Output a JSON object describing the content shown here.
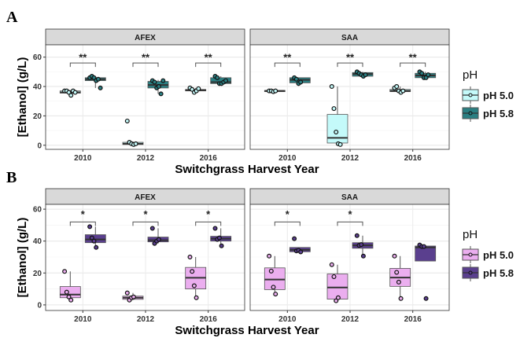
{
  "chart_data": [
    {
      "panel": "A",
      "type": "box",
      "xlabel": "Switchgrass Harvest Year",
      "ylabel": "[Ethanol] (g/L)",
      "ylim": [
        -2.8,
        68.4
      ],
      "yticks": [
        "0",
        "20",
        "40",
        "60"
      ],
      "categories": [
        "2010",
        "2012",
        "2016"
      ],
      "legend": {
        "title": "pH",
        "position": "right",
        "entries": [
          {
            "label": "pH 5.0",
            "color": "#c4fafa"
          },
          {
            "label": "pH 5.8",
            "color": "#2a7f82"
          }
        ]
      },
      "facets": [
        {
          "name": "AFEX",
          "groups": [
            {
              "year": "2010",
              "sig": "**",
              "boxes": [
                {
                  "ph": "pH 5.0",
                  "min": 34,
                  "q1": 35.5,
                  "median": 36,
                  "q3": 37,
                  "max": 37.5,
                  "points": [
                    37,
                    37,
                    36,
                    34,
                    37,
                    36
                  ]
                },
                {
                  "ph": "pH 5.8",
                  "min": 39,
                  "q1": 44,
                  "median": 45,
                  "q3": 46,
                  "max": 47,
                  "points": [
                    46,
                    47,
                    46,
                    44,
                    45,
                    39
                  ]
                }
              ]
            },
            {
              "year": "2012",
              "sig": "**",
              "boxes": [
                {
                  "ph": "pH 5.0",
                  "min": 0.5,
                  "q1": 0.5,
                  "median": 1,
                  "q3": 2,
                  "max": 2.5,
                  "points": [
                    16.5,
                    2,
                    1,
                    0.5,
                    1
                  ]
                },
                {
                  "ph": "pH 5.8",
                  "min": 35,
                  "q1": 39,
                  "median": 41,
                  "q3": 43.5,
                  "max": 44.5,
                  "points": [
                    44,
                    43,
                    39,
                    40,
                    35,
                    44
                  ]
                }
              ]
            },
            {
              "year": "2016",
              "sig": "**",
              "boxes": [
                {
                  "ph": "pH 5.0",
                  "min": 36,
                  "q1": 37,
                  "median": 37.5,
                  "q3": 38,
                  "max": 39,
                  "points": [
                    39,
                    38,
                    36,
                    37,
                    38.5
                  ]
                },
                {
                  "ph": "pH 5.8",
                  "min": 42,
                  "q1": 42,
                  "median": 43,
                  "q3": 46,
                  "max": 47,
                  "points": [
                    47,
                    46,
                    42,
                    42,
                    43,
                    44
                  ]
                }
              ]
            }
          ]
        },
        {
          "name": "SAA",
          "groups": [
            {
              "year": "2010",
              "sig": "**",
              "boxes": [
                {
                  "ph": "pH 5.0",
                  "min": 36.5,
                  "q1": 36.5,
                  "median": 37,
                  "q3": 37.3,
                  "max": 37.5,
                  "points": [
                    37,
                    37,
                    36.5,
                    37
                  ]
                },
                {
                  "ph": "pH 5.8",
                  "min": 42,
                  "q1": 42.5,
                  "median": 44.5,
                  "q3": 46,
                  "max": 46,
                  "points": [
                    46,
                    45,
                    42,
                    43
                  ]
                }
              ]
            },
            {
              "year": "2012",
              "sig": "**",
              "boxes": [
                {
                  "ph": "pH 5.0",
                  "min": 0.5,
                  "q1": 1.5,
                  "median": 5,
                  "q3": 21,
                  "max": 40,
                  "points": [
                    40,
                    25,
                    9,
                    1,
                    0.5
                  ]
                },
                {
                  "ph": "pH 5.8",
                  "min": 47,
                  "q1": 47,
                  "median": 48.5,
                  "q3": 49.5,
                  "max": 50,
                  "points": [
                    50,
                    49,
                    48,
                    47,
                    48
                  ]
                }
              ]
            },
            {
              "year": "2016",
              "sig": "**",
              "boxes": [
                {
                  "ph": "pH 5.0",
                  "min": 36,
                  "q1": 36.5,
                  "median": 37,
                  "q3": 38,
                  "max": 40,
                  "points": [
                    39,
                    40,
                    37,
                    36,
                    37
                  ]
                },
                {
                  "ph": "pH 5.8",
                  "min": 46,
                  "q1": 46,
                  "median": 47.5,
                  "q3": 49,
                  "max": 50,
                  "points": [
                    50,
                    49,
                    46,
                    46,
                    48
                  ]
                }
              ]
            }
          ]
        }
      ]
    },
    {
      "panel": "B",
      "type": "box",
      "xlabel": "Switchgrass Harvest Year",
      "ylabel": "[Ethanol] (g/L)",
      "ylim": [
        -3.5,
        63
      ],
      "yticks": [
        "0",
        "20",
        "40",
        "60"
      ],
      "categories": [
        "2010",
        "2012",
        "2016"
      ],
      "legend": {
        "title": "pH",
        "position": "right",
        "entries": [
          {
            "label": "pH 5.0",
            "color": "#ebaeef"
          },
          {
            "label": "pH 5.8",
            "color": "#5a3f8e"
          }
        ]
      },
      "facets": [
        {
          "name": "AFEX",
          "groups": [
            {
              "year": "2010",
              "sig": "*",
              "boxes": [
                {
                  "ph": "pH 5.0",
                  "min": 3,
                  "q1": 4.5,
                  "median": 6.5,
                  "q3": 11.5,
                  "max": 21,
                  "points": [
                    21,
                    8,
                    5,
                    3
                  ]
                },
                {
                  "ph": "pH 5.8",
                  "min": 36,
                  "q1": 39,
                  "median": 41,
                  "q3": 44,
                  "max": 49,
                  "points": [
                    49,
                    42,
                    40,
                    36
                  ]
                }
              ]
            },
            {
              "year": "2012",
              "sig": "*",
              "boxes": [
                {
                  "ph": "pH 5.0",
                  "min": 3,
                  "q1": 3.5,
                  "median": 4.5,
                  "q3": 5.5,
                  "max": 7.5,
                  "points": [
                    7.5,
                    3,
                    4.5,
                    5
                  ]
                },
                {
                  "ph": "pH 5.8",
                  "min": 38.5,
                  "q1": 39.5,
                  "median": 40.5,
                  "q3": 42.5,
                  "max": 48,
                  "points": [
                    48,
                    38.5,
                    40,
                    41
                  ]
                }
              ]
            },
            {
              "year": "2016",
              "sig": "*",
              "boxes": [
                {
                  "ph": "pH 5.0",
                  "min": 4.5,
                  "q1": 10,
                  "median": 17,
                  "q3": 23.5,
                  "max": 30,
                  "points": [
                    30,
                    21,
                    12,
                    4.5
                  ]
                },
                {
                  "ph": "pH 5.8",
                  "min": 37,
                  "q1": 40,
                  "median": 41.5,
                  "q3": 43,
                  "max": 48,
                  "points": [
                    48,
                    41,
                    42,
                    37
                  ]
                }
              ]
            }
          ]
        },
        {
          "name": "SAA",
          "groups": [
            {
              "year": "2010",
              "sig": "*",
              "boxes": [
                {
                  "ph": "pH 5.0",
                  "min": 6.8,
                  "q1": 9.6,
                  "median": 15.9,
                  "q3": 23.2,
                  "max": 30.6,
                  "points": [
                    30.6,
                    21.2,
                    11.1,
                    6.8
                  ]
                },
                {
                  "ph": "pH 5.8",
                  "min": 33.2,
                  "q1": 33.3,
                  "median": 34.5,
                  "q3": 36,
                  "max": 36,
                  "points": [
                    41.5,
                    33.8,
                    34.2,
                    33.2
                  ]
                }
              ]
            },
            {
              "year": "2012",
              "sig": "*",
              "boxes": [
                {
                  "ph": "pH 5.0",
                  "min": 2.6,
                  "q1": 3.6,
                  "median": 10.9,
                  "q3": 19.4,
                  "max": 25.2,
                  "points": [
                    25.2,
                    17.7,
                    2.6,
                    4.5
                  ]
                },
                {
                  "ph": "pH 5.8",
                  "min": 30.6,
                  "q1": 35.5,
                  "median": 37.3,
                  "q3": 39,
                  "max": 43.4,
                  "points": [
                    43.4,
                    37.3,
                    37.8,
                    30.6
                  ]
                }
              ]
            },
            {
              "year": "2016",
              "sig": "",
              "boxes": [
                {
                  "ph": "pH 5.0",
                  "min": 4,
                  "q1": 11.6,
                  "median": 17.1,
                  "q3": 22.9,
                  "max": 30.6,
                  "points": [
                    30.6,
                    20.4,
                    14.3,
                    4
                  ]
                },
                {
                  "ph": "pH 5.8",
                  "min": 27.5,
                  "q1": 27.5,
                  "median": 36,
                  "q3": 36.9,
                  "max": 37.6,
                  "points": [
                    37.6,
                    36.6,
                    36.6,
                    4
                  ]
                }
              ]
            }
          ]
        }
      ]
    }
  ]
}
